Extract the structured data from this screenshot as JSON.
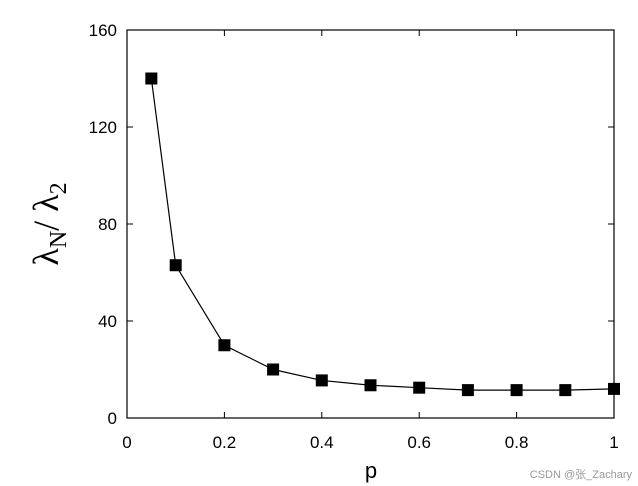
{
  "chart_data": {
    "type": "line",
    "xlabel": "p",
    "ylabel": [
      "λ",
      "N",
      "/ λ",
      "2"
    ],
    "x": [
      0.05,
      0.1,
      0.2,
      0.3,
      0.4,
      0.5,
      0.6,
      0.7,
      0.8,
      0.9,
      1.0
    ],
    "series": [
      {
        "color": "#000000",
        "values": [
          140,
          63,
          30,
          20,
          15.5,
          13.5,
          12.5,
          11.5,
          11.5,
          11.5,
          12
        ]
      }
    ],
    "xlim": [
      0,
      1
    ],
    "xticks": [
      0,
      0.2,
      0.4,
      0.6,
      0.8,
      1
    ],
    "ylim": [
      0,
      160
    ],
    "yticks": [
      0,
      40,
      80,
      120,
      160
    ],
    "watermark": "CSDN @张_Zachary"
  }
}
